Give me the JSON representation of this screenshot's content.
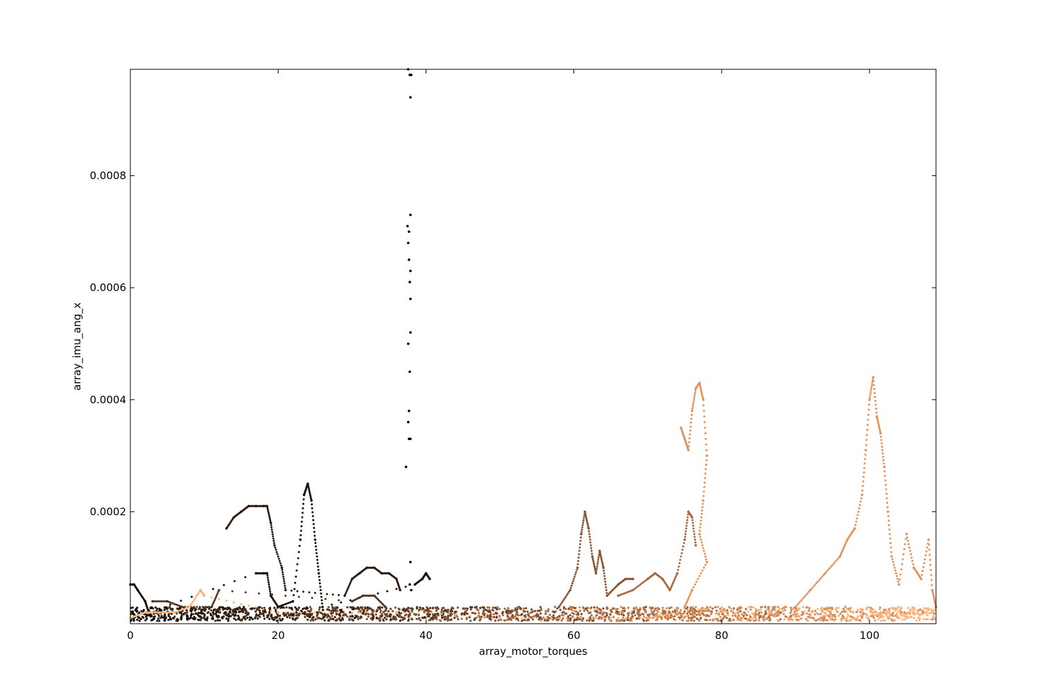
{
  "chart_data": {
    "type": "scatter",
    "title": "",
    "xlabel": "array_motor_torques",
    "ylabel": "array_imu_ang_x",
    "xlim": [
      0,
      109
    ],
    "ylim": [
      0,
      0.00099
    ],
    "x_ticks": [
      0,
      20,
      40,
      60,
      80,
      100
    ],
    "x_tick_labels": [
      "0",
      "20",
      "40",
      "60",
      "80",
      "100"
    ],
    "y_ticks": [
      0.0002,
      0.0004,
      0.0006,
      0.0008
    ],
    "y_tick_labels": [
      "0.0002",
      "0.0004",
      "0.0006",
      "0.0008"
    ],
    "grid": false,
    "legend": "none",
    "colormap": "copper",
    "series": [
      {
        "color": "#000000",
        "points": [
          [
            37.6,
            0.00099
          ],
          [
            37.8,
            0.00098
          ],
          [
            38.0,
            0.00098
          ],
          [
            37.9,
            0.00094
          ],
          [
            37.9,
            0.00073
          ],
          [
            37.5,
            0.00071
          ],
          [
            37.7,
            0.0007
          ],
          [
            37.6,
            0.00068
          ],
          [
            37.7,
            0.00065
          ],
          [
            37.9,
            0.00063
          ],
          [
            37.8,
            0.00061
          ],
          [
            37.9,
            0.00058
          ],
          [
            37.9,
            0.00052
          ],
          [
            37.6,
            0.0005
          ],
          [
            37.8,
            0.00045
          ],
          [
            37.7,
            0.00038
          ],
          [
            37.6,
            0.00036
          ],
          [
            37.7,
            0.00033
          ],
          [
            37.9,
            0.00033
          ],
          [
            37.3,
            0.00028
          ],
          [
            37.9,
            0.00011
          ],
          [
            37.8,
            7e-05
          ],
          [
            38.0,
            6e-05
          ]
        ]
      },
      {
        "color": "#1a0f09",
        "points": [
          [
            0,
            7e-05
          ],
          [
            0.5,
            7e-05
          ],
          [
            1,
            6e-05
          ],
          [
            2,
            4e-05
          ],
          [
            2.5,
            2e-05
          ],
          [
            17,
            9e-05
          ],
          [
            18,
            9e-05
          ],
          [
            18.5,
            9e-05
          ],
          [
            19,
            5e-05
          ],
          [
            20,
            3e-05
          ],
          [
            22,
            4e-05
          ],
          [
            23,
            0.00015
          ],
          [
            23.5,
            0.00023
          ],
          [
            24,
            0.00025
          ],
          [
            24.5,
            0.00022
          ],
          [
            25,
            0.00015
          ],
          [
            25.5,
            9e-05
          ],
          [
            26,
            3e-05
          ],
          [
            38.5,
            7e-05
          ],
          [
            39.5,
            8e-05
          ],
          [
            40,
            9e-05
          ],
          [
            40.5,
            8e-05
          ]
        ]
      },
      {
        "color": "#2f1d12",
        "points": [
          [
            13,
            0.00017
          ],
          [
            14,
            0.00019
          ],
          [
            15,
            0.0002
          ],
          [
            16,
            0.00021
          ],
          [
            17,
            0.00021
          ],
          [
            18,
            0.00021
          ],
          [
            18.5,
            0.00021
          ],
          [
            19,
            0.00018
          ],
          [
            19.5,
            0.00014
          ],
          [
            20.5,
            0.0001
          ],
          [
            21,
            6e-05
          ],
          [
            29,
            5e-05
          ],
          [
            30,
            8e-05
          ],
          [
            31,
            9e-05
          ],
          [
            32,
            0.0001
          ],
          [
            33,
            0.0001
          ],
          [
            34,
            9e-05
          ],
          [
            35,
            9e-05
          ],
          [
            36,
            8e-05
          ],
          [
            36.5,
            6e-05
          ]
        ]
      },
      {
        "color": "#55341f",
        "points": [
          [
            3,
            4e-05
          ],
          [
            5,
            4e-05
          ],
          [
            7,
            3e-05
          ],
          [
            11,
            3e-05
          ],
          [
            12,
            6e-05
          ],
          [
            30,
            4e-05
          ],
          [
            31.5,
            5e-05
          ],
          [
            33,
            5e-05
          ],
          [
            34.5,
            3e-05
          ]
        ]
      },
      {
        "color": "#8a5533",
        "points": [
          [
            58,
            3e-05
          ],
          [
            59.5,
            6e-05
          ],
          [
            60.5,
            0.0001
          ],
          [
            61,
            0.00016
          ],
          [
            61.5,
            0.0002
          ],
          [
            62,
            0.00017
          ],
          [
            62.5,
            0.00012
          ],
          [
            63,
            9e-05
          ],
          [
            63.5,
            0.00013
          ],
          [
            64,
            0.0001
          ],
          [
            64.5,
            5e-05
          ],
          [
            66,
            7e-05
          ],
          [
            67,
            8e-05
          ],
          [
            68,
            8e-05
          ]
        ]
      },
      {
        "color": "#a96940",
        "points": [
          [
            66,
            5e-05
          ],
          [
            68,
            6e-05
          ],
          [
            70,
            8e-05
          ],
          [
            71,
            9e-05
          ],
          [
            72,
            8e-05
          ],
          [
            73,
            6e-05
          ],
          [
            74,
            9e-05
          ],
          [
            75,
            0.00015
          ],
          [
            75.5,
            0.0002
          ],
          [
            76,
            0.00019
          ],
          [
            76.5,
            0.00014
          ]
        ]
      },
      {
        "color": "#e3925a",
        "points": [
          [
            74.5,
            0.00035
          ],
          [
            75,
            0.00033
          ],
          [
            75.5,
            0.00031
          ],
          [
            76,
            0.00038
          ],
          [
            76.5,
            0.00042
          ],
          [
            77,
            0.00043
          ],
          [
            77.5,
            0.0004
          ],
          [
            78,
            0.0003
          ],
          [
            77.5,
            0.00022
          ],
          [
            77,
            0.00016
          ],
          [
            78,
            0.00011
          ],
          [
            76,
            6e-05
          ],
          [
            75,
            3e-05
          ],
          [
            90,
            3e-05
          ],
          [
            92,
            6e-05
          ],
          [
            94,
            9e-05
          ],
          [
            96,
            0.00012
          ],
          [
            97,
            0.00015
          ],
          [
            98,
            0.00017
          ],
          [
            99,
            0.00023
          ],
          [
            99.5,
            0.00031
          ],
          [
            100,
            0.0004
          ],
          [
            100.5,
            0.00044
          ],
          [
            101,
            0.00037
          ],
          [
            101.5,
            0.00034
          ],
          [
            102,
            0.00028
          ],
          [
            102.5,
            0.0002
          ],
          [
            103,
            0.00012
          ],
          [
            104,
            7e-05
          ],
          [
            105,
            0.00016
          ],
          [
            106,
            0.0001
          ],
          [
            107,
            8e-05
          ],
          [
            108,
            0.00015
          ],
          [
            108.5,
            6e-05
          ],
          [
            109,
            3e-05
          ]
        ]
      },
      {
        "color": "#fcb37a",
        "points": [
          [
            0,
            1e-05
          ],
          [
            2,
            2e-05
          ],
          [
            4,
            2e-05
          ],
          [
            6,
            2e-05
          ],
          [
            8,
            3e-05
          ],
          [
            9.5,
            6e-05
          ],
          [
            10,
            5e-05
          ],
          [
            20,
            2e-05
          ],
          [
            30,
            2e-05
          ],
          [
            40,
            2e-05
          ],
          [
            50,
            1e-05
          ],
          [
            60,
            1e-05
          ],
          [
            70,
            1e-05
          ],
          [
            74,
            2e-05
          ]
        ]
      }
    ],
    "baseline_band": {
      "y_range": [
        5e-06,
        3e-05
      ],
      "x_range": [
        0,
        109
      ],
      "colors": [
        "#0a0604",
        "#2a1a0f",
        "#4a2e1b",
        "#7a4b2c",
        "#a86a40",
        "#d68a55",
        "#fcb37a"
      ]
    }
  }
}
